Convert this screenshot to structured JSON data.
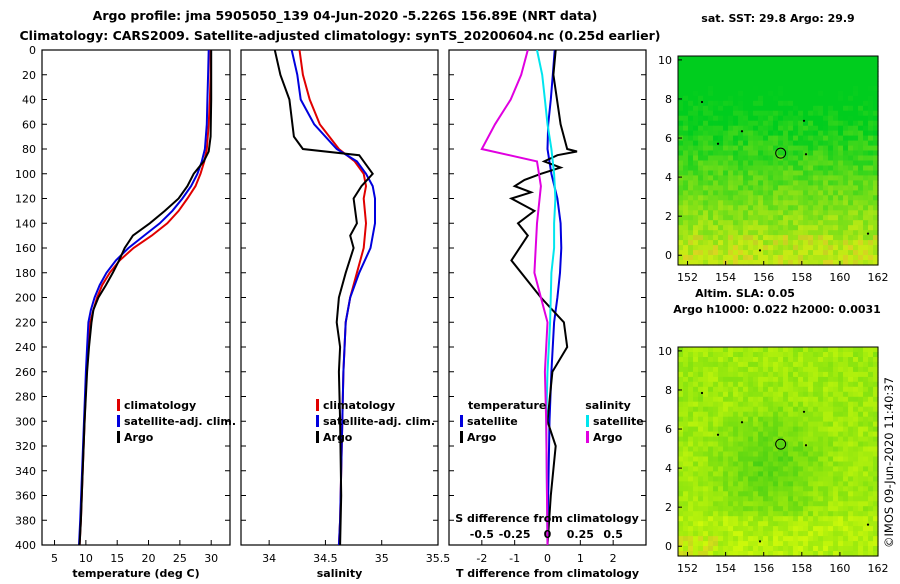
{
  "title_line1": "Argo profile: jma 5905050_139 04-Jun-2020 -5.226S 156.89E (NRT data)",
  "title_line2": "Climatology: CARS2009. Satellite-adjusted climatology: synTS_20200604.nc (0.25d earlier)",
  "map1_title": "sat. SST: 29.8 Argo: 29.9",
  "map2_title_line1": "Altim. SLA: 0.05",
  "map2_title_line2": "Argo h1000: 0.022 h2000: 0.0031",
  "watermark": "©IMOS 09-Jun-2020 11:40:37",
  "colors": {
    "climatology": "#e00000",
    "satellite": "#0000dd",
    "argo": "#000000",
    "sat_salinity": "#00e5ee",
    "clim_salinity": "#e000e0",
    "map_green": "#00c800",
    "map_yellow": "#c8ff00"
  },
  "chart_data": [
    {
      "type": "line",
      "name": "temperature-panel",
      "xlabel": "temperature (deg C)",
      "ylabel": "",
      "xlim": [
        3,
        33
      ],
      "ylim": [
        400,
        0
      ],
      "xticks": [
        "5",
        "10",
        "15",
        "20",
        "25",
        "30"
      ],
      "yticks": [
        "0",
        "20",
        "40",
        "60",
        "80",
        "100",
        "120",
        "140",
        "160",
        "180",
        "200",
        "220",
        "240",
        "260",
        "280",
        "300",
        "320",
        "340",
        "360",
        "380",
        "400"
      ],
      "legend": {
        "entries": [
          "climatology",
          "satellite-adj. clim.",
          "Argo"
        ],
        "placement": "bottom-right"
      },
      "series": [
        {
          "name": "climatology",
          "color": "#e00000",
          "x": [
            29.9,
            29.9,
            29.8,
            29.6,
            29.3,
            28.9,
            28.3,
            27.5,
            26.2,
            24.8,
            23,
            20.5,
            17.6,
            15.4,
            13.8,
            12.6,
            11.8,
            11.2,
            10.7,
            10.4,
            10.1,
            9.8,
            9.5,
            9.2,
            9.0
          ],
          "y": [
            0,
            20,
            40,
            60,
            80,
            90,
            100,
            110,
            120,
            130,
            140,
            150,
            160,
            170,
            180,
            190,
            200,
            210,
            220,
            240,
            260,
            300,
            340,
            380,
            400
          ]
        },
        {
          "name": "satellite-adj. clim.",
          "color": "#0000dd",
          "x": [
            29.6,
            29.5,
            29.4,
            29.3,
            29.0,
            28.5,
            27.8,
            26.8,
            25.4,
            23.8,
            21.8,
            19.3,
            16.8,
            14.8,
            13.3,
            12.2,
            11.4,
            10.8,
            10.4,
            10.2,
            10.0,
            9.7,
            9.4,
            9.1,
            8.9
          ],
          "y": [
            0,
            20,
            40,
            60,
            80,
            90,
            100,
            110,
            120,
            130,
            140,
            150,
            160,
            170,
            180,
            190,
            200,
            210,
            220,
            240,
            260,
            300,
            340,
            380,
            400
          ]
        },
        {
          "name": "Argo",
          "color": "#000000",
          "x": [
            30.0,
            30.0,
            30.0,
            29.9,
            29.6,
            28.8,
            27.2,
            26.2,
            24.8,
            22.6,
            20.2,
            17.5,
            16.2,
            15.3,
            14.3,
            13.2,
            12.0,
            11.2,
            10.9,
            10.5,
            10.2,
            9.8,
            9.5,
            9.2,
            9.0,
            8.8
          ],
          "y": [
            0,
            20,
            40,
            70,
            82,
            90,
            100,
            110,
            120,
            130,
            140,
            150,
            160,
            170,
            180,
            190,
            200,
            210,
            220,
            240,
            260,
            300,
            340,
            380,
            400,
            400
          ]
        }
      ]
    },
    {
      "type": "line",
      "name": "salinity-panel",
      "xlabel": "salinity",
      "ylabel": "",
      "xlim": [
        33.75,
        35.5
      ],
      "ylim": [
        400,
        0
      ],
      "xticks": [
        "34",
        "34.5",
        "35",
        "35.5"
      ],
      "legend": {
        "entries": [
          "climatology",
          "satellite-adj. clim.",
          "Argo"
        ],
        "placement": "bottom-right"
      },
      "series": [
        {
          "name": "climatology",
          "color": "#e00000",
          "x": [
            34.27,
            34.3,
            34.36,
            34.45,
            34.62,
            34.76,
            34.84,
            34.86,
            34.84,
            34.86,
            34.84,
            34.78,
            34.72,
            34.68,
            34.66,
            34.65,
            34.64,
            34.63,
            34.62
          ],
          "y": [
            0,
            20,
            40,
            60,
            80,
            90,
            100,
            110,
            120,
            140,
            160,
            180,
            200,
            220,
            260,
            300,
            340,
            380,
            400
          ]
        },
        {
          "name": "satellite-adj. clim.",
          "color": "#0000dd",
          "x": [
            34.2,
            34.25,
            34.28,
            34.4,
            34.6,
            34.78,
            34.86,
            34.92,
            34.94,
            34.94,
            34.9,
            34.8,
            34.72,
            34.68,
            34.66,
            34.65,
            34.64,
            34.63,
            34.62
          ],
          "y": [
            0,
            20,
            40,
            60,
            80,
            90,
            100,
            110,
            120,
            140,
            160,
            180,
            200,
            220,
            260,
            300,
            340,
            380,
            400
          ]
        },
        {
          "name": "Argo",
          "color": "#000000",
          "x": [
            34.05,
            34.1,
            34.18,
            34.22,
            34.3,
            34.8,
            34.92,
            34.82,
            34.75,
            34.78,
            34.72,
            34.75,
            34.68,
            34.62,
            34.6,
            34.63,
            34.62,
            34.63,
            34.64,
            34.63
          ],
          "y": [
            0,
            20,
            40,
            70,
            80,
            85,
            100,
            110,
            120,
            140,
            150,
            160,
            180,
            200,
            220,
            240,
            260,
            300,
            360,
            400
          ]
        }
      ]
    },
    {
      "type": "line",
      "name": "difference-panel",
      "xlabel": "T difference from climatology",
      "x2label": "S difference from climatology",
      "xlim": [
        -3,
        3
      ],
      "ylim": [
        400,
        0
      ],
      "xticks": [
        "-2",
        "-1",
        "0",
        "1",
        "2"
      ],
      "x2ticks": [
        "-0.5",
        "-0.25",
        "0",
        "0.25",
        "0.5"
      ],
      "legend": {
        "entries": [
          "temperature",
          "satellite",
          "Argo",
          "salinity",
          "satellite",
          "Argo"
        ],
        "placement": "bottom"
      },
      "series": [
        {
          "name": "temperature satellite",
          "color": "#0000dd",
          "x": [
            0.22,
            0.16,
            0.1,
            0.02,
            0.0,
            0.12,
            0.3,
            0.4,
            0.42,
            0.38,
            0.3,
            0.2,
            0.12,
            0.06,
            0.02,
            0.0
          ],
          "y": [
            0,
            20,
            40,
            60,
            80,
            100,
            120,
            140,
            160,
            180,
            200,
            220,
            260,
            300,
            360,
            400
          ]
        },
        {
          "name": "temperature Argo",
          "color": "#000000",
          "x": [
            0.25,
            0.18,
            0.4,
            0.6,
            0.9,
            0.3,
            -0.1,
            0.4,
            -0.2,
            -0.7,
            -1.0,
            -0.5,
            -1.1,
            -0.4,
            -0.9,
            -0.6,
            -1.1,
            -0.2,
            0.5,
            0.6,
            0.15,
            0.0,
            0.25,
            0.1,
            0.0
          ],
          "y": [
            0,
            20,
            60,
            80,
            82,
            85,
            90,
            95,
            100,
            105,
            110,
            115,
            120,
            130,
            140,
            150,
            170,
            200,
            220,
            240,
            260,
            300,
            320,
            360,
            400
          ]
        },
        {
          "name": "salinity satellite",
          "color": "#00e5ee",
          "x": [
            -0.08,
            -0.04,
            -0.02,
            0.0,
            0.03,
            0.05,
            0.06,
            0.05,
            0.05,
            0.03,
            0.02,
            0.0,
            -0.01,
            0.0
          ],
          "y": [
            0,
            20,
            40,
            60,
            80,
            100,
            120,
            140,
            160,
            180,
            220,
            260,
            300,
            400
          ]
        },
        {
          "name": "salinity Argo",
          "color": "#e000e0",
          "x": [
            -0.15,
            -0.2,
            -0.28,
            -0.4,
            -0.5,
            -0.08,
            -0.05,
            -0.08,
            -0.1,
            -0.05,
            0.0,
            -0.02,
            -0.01,
            0.0
          ],
          "y": [
            0,
            20,
            40,
            60,
            80,
            90,
            110,
            140,
            180,
            200,
            220,
            260,
            300,
            400
          ]
        }
      ]
    },
    {
      "type": "heatmap",
      "name": "sst-map",
      "title": "sat. SST: 29.8 Argo: 29.9",
      "xlim": [
        151.5,
        162
      ],
      "ylim": [
        -0.5,
        10.2
      ],
      "xticks": [
        "152",
        "154",
        "156",
        "158",
        "160",
        "162"
      ],
      "yticks": [
        "0",
        "2",
        "4",
        "6",
        "8",
        "10"
      ],
      "marker": {
        "x": 156.89,
        "y": 5.226
      }
    },
    {
      "type": "heatmap",
      "name": "sla-map",
      "title": "Altim. SLA: 0.05",
      "xlim": [
        151.5,
        162
      ],
      "ylim": [
        -0.5,
        10.2
      ],
      "xticks": [
        "152",
        "154",
        "156",
        "158",
        "160",
        "162"
      ],
      "yticks": [
        "0",
        "2",
        "4",
        "6",
        "8",
        "10"
      ],
      "marker": {
        "x": 156.89,
        "y": 5.226
      }
    }
  ]
}
